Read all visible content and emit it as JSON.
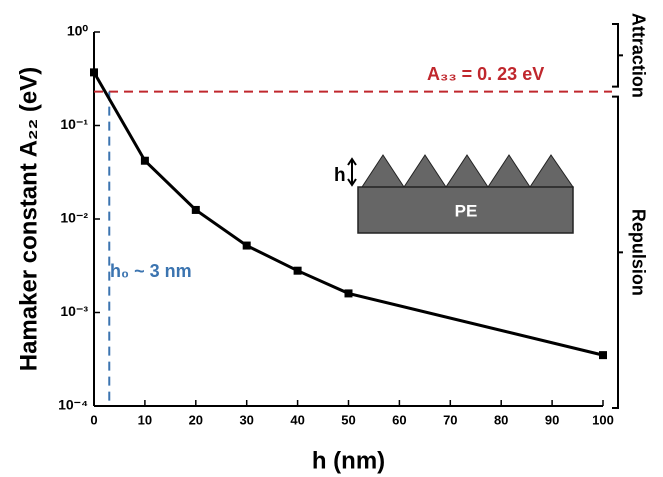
{
  "chart_data": {
    "type": "line",
    "log_y": true,
    "y_label": "Hamaker constant A₂₂ (eV)",
    "x_label": "h (nm)",
    "x": [
      0,
      10,
      20,
      30,
      40,
      50,
      100
    ],
    "values": [
      0.37,
      0.042,
      0.0125,
      0.0052,
      0.0028,
      0.0016,
      0.00035
    ],
    "color": "#000000",
    "xlim": [
      0,
      100
    ],
    "xticks": [
      0,
      10,
      20,
      30,
      40,
      50,
      60,
      70,
      80,
      90,
      100
    ],
    "ylim": [
      0.0001,
      1
    ],
    "yticks": [
      {
        "value": 0.0001,
        "label": "10⁻⁴"
      },
      {
        "value": 0.001,
        "label": "10⁻³"
      },
      {
        "value": 0.01,
        "label": "10⁻²"
      },
      {
        "value": 0.1,
        "label": "10⁻¹"
      },
      {
        "value": 1,
        "label": "10⁰"
      }
    ],
    "reference_lines": {
      "y": 0.23,
      "y_color": "#c0272d",
      "y_label": "A₃₃ = 0. 23 eV",
      "x": 3,
      "x_color": "#3b74b0",
      "x_label": "h₀ ~ 3 nm"
    },
    "regions": {
      "above": "Attraction",
      "below": "Repulsion"
    },
    "inset": {
      "h_label": "h",
      "body_label": "PE"
    }
  }
}
